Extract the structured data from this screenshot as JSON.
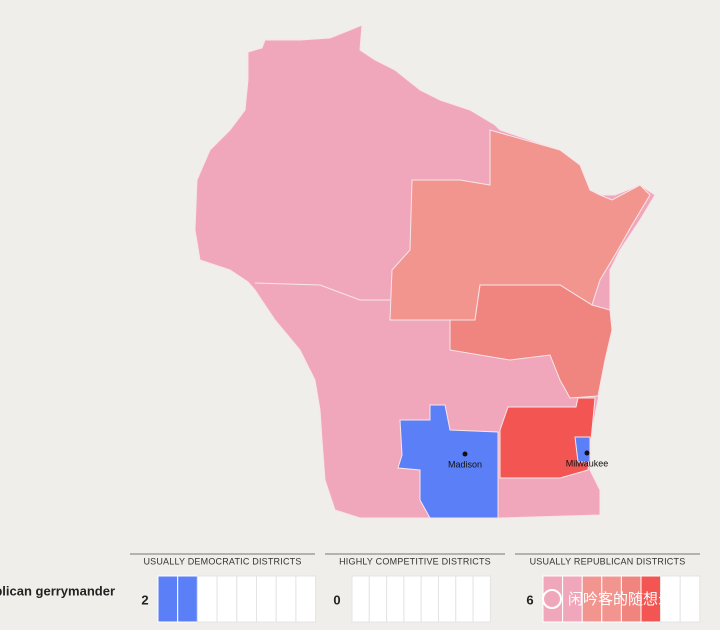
{
  "map": {
    "cities": [
      {
        "name": "Madison"
      },
      {
        "name": "Milwaukee"
      }
    ]
  },
  "legend": {
    "row_label": "Republican gerrymander",
    "groups": [
      {
        "title": "USUALLY DEMOCRATIC DISTRICTS",
        "count": 2,
        "fills": [
          "#5b7ff6",
          "#5b7ff6"
        ]
      },
      {
        "title": "HIGHLY COMPETITIVE DISTRICTS",
        "count": 0,
        "fills": []
      },
      {
        "title": "USUALLY REPUBLICAN DISTRICTS",
        "count": 6,
        "fills": [
          "#f1a7bb",
          "#f1a7bb",
          "#f3958f",
          "#f3958f",
          "#f0847f",
          "#f25552"
        ]
      }
    ]
  },
  "watermark": "闲吟客的随想录"
}
